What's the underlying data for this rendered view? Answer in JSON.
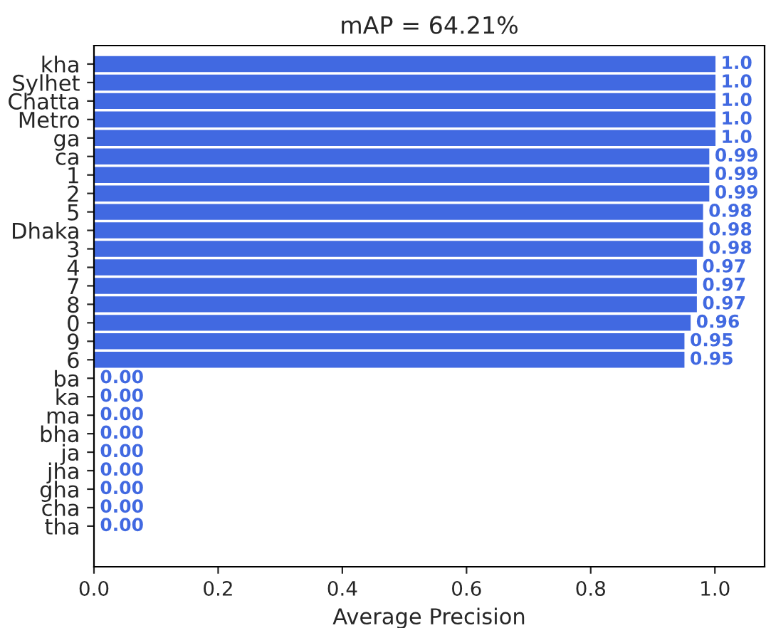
{
  "chart_data": {
    "type": "bar",
    "orientation": "horizontal",
    "title": "mAP = 64.21%",
    "xlabel": "Average Precision",
    "categories": [
      "kha",
      "Sylhet",
      "Chatta",
      "Metro",
      "ga",
      "ca",
      "1",
      "2",
      "5",
      "Dhaka",
      "3",
      "4",
      "7",
      "8",
      "0",
      "9",
      "6",
      "ba",
      "ka",
      "ma",
      "bha",
      "ja",
      "jha",
      "gha",
      "cha",
      "tha"
    ],
    "values": [
      1.0,
      1.0,
      1.0,
      1.0,
      1.0,
      0.99,
      0.99,
      0.99,
      0.98,
      0.98,
      0.98,
      0.97,
      0.97,
      0.97,
      0.96,
      0.95,
      0.95,
      0,
      0,
      0,
      0,
      0,
      0,
      0,
      0,
      0
    ],
    "value_labels": [
      "1.0",
      "1.0",
      "1.0",
      "1.0",
      "1.0",
      "0.99",
      "0.99",
      "0.99",
      "0.98",
      "0.98",
      "0.98",
      "0.97",
      "0.97",
      "0.97",
      "0.96",
      "0.95",
      "0.95",
      "0.00",
      "0.00",
      "0.00",
      "0.00",
      "0.00",
      "0.00",
      "0.00",
      "0.00",
      "0.00"
    ],
    "color": "#4169e1",
    "xlim": [
      0,
      1.08
    ],
    "xticks": [
      {
        "value": 0,
        "label": "0.0"
      },
      {
        "value": 0.2,
        "label": "0.2"
      },
      {
        "value": 0.4,
        "label": "0.4"
      },
      {
        "value": 0.6,
        "label": "0.6"
      },
      {
        "value": 0.8,
        "label": "0.8"
      },
      {
        "value": 1.0,
        "label": "1.0"
      }
    ],
    "grid": false,
    "legend": false
  }
}
